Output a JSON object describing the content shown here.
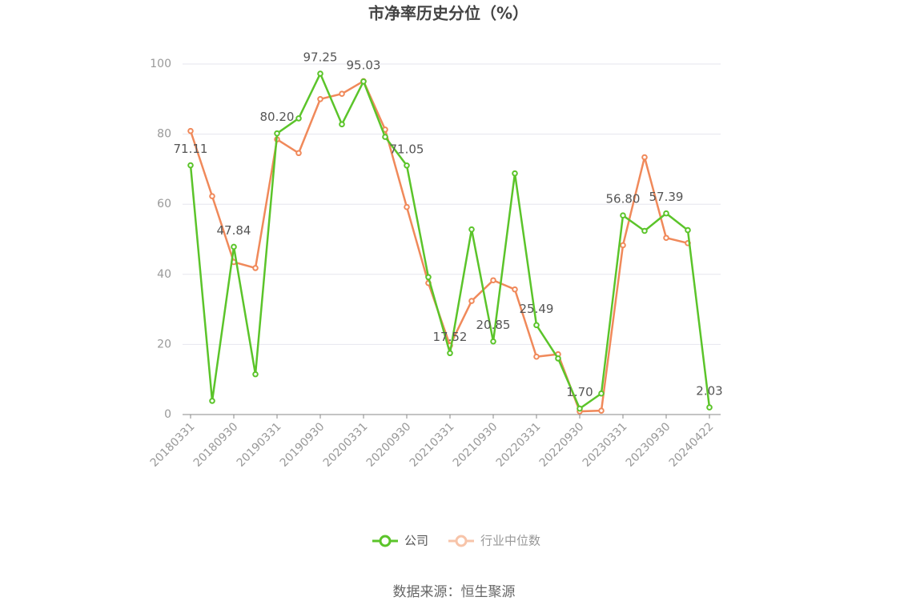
{
  "chart_data": {
    "type": "line",
    "title": "市净率历史分位（%）",
    "categories": [
      "20180331",
      null,
      "20180930",
      null,
      "20190331",
      null,
      "20190930",
      null,
      "20200331",
      null,
      "20200930",
      null,
      "20210331",
      null,
      "20210930",
      null,
      "20220331",
      null,
      "20220930",
      null,
      "20230331",
      null,
      "20230930",
      null,
      "20240422"
    ],
    "series": [
      {
        "name": "公司",
        "color": "#5bc42a",
        "values": [
          71.11,
          3.9,
          47.84,
          11.5,
          80.2,
          84.5,
          97.25,
          82.8,
          95.03,
          79.2,
          71.05,
          39.2,
          17.52,
          52.8,
          20.85,
          68.8,
          25.49,
          16.0,
          1.7,
          6.0,
          56.8,
          52.4,
          57.39,
          52.6,
          2.03
        ],
        "value_labels": [
          "71.11",
          null,
          "47.84",
          null,
          "80.20",
          null,
          "97.25",
          null,
          "95.03",
          null,
          "71.05",
          null,
          "17.52",
          null,
          "20.85",
          null,
          "25.49",
          null,
          "1.70",
          null,
          "56.80",
          null,
          "57.39",
          null,
          "2.03"
        ]
      },
      {
        "name": "行业中位数",
        "color": "#f0895a",
        "values": [
          80.9,
          62.3,
          43.5,
          41.8,
          78.5,
          74.6,
          90.0,
          91.5,
          95.1,
          81.3,
          59.2,
          37.5,
          19.7,
          32.4,
          38.3,
          35.7,
          16.5,
          17.2,
          0.9,
          1.1,
          48.3,
          73.4,
          50.4,
          48.9,
          null
        ]
      }
    ],
    "ylim": [
      0,
      100
    ],
    "yticks": [
      0,
      20,
      40,
      60,
      80,
      100
    ],
    "grid": true,
    "source": "数据来源：恒生聚源"
  }
}
